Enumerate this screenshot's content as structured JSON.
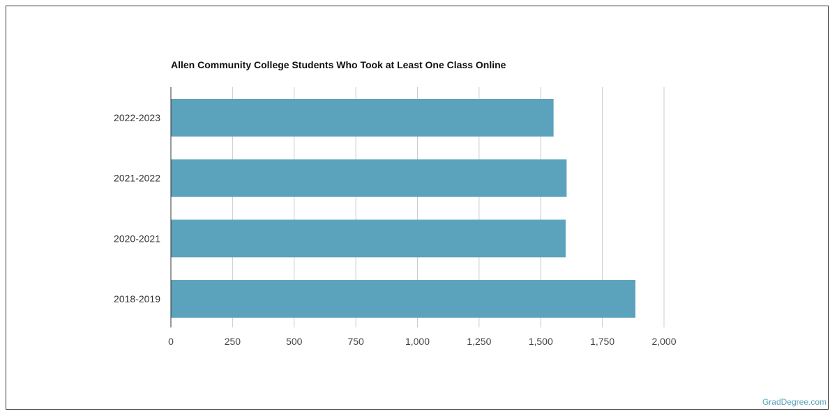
{
  "chart_data": {
    "type": "bar",
    "orientation": "horizontal",
    "title": "Allen Community College Students Who Took at Least One Class Online",
    "xlabel": "",
    "ylabel": "",
    "categories": [
      "2022-2023",
      "2021-2022",
      "2020-2021",
      "2018-2019"
    ],
    "values": [
      1552,
      1605,
      1601,
      1884
    ],
    "xlim": [
      0,
      2000
    ],
    "x_ticks": [
      0,
      250,
      500,
      750,
      1000,
      1250,
      1500,
      1750,
      2000
    ],
    "x_tick_labels": [
      "0",
      "250",
      "500",
      "750",
      "1,000",
      "1,250",
      "1,500",
      "1,750",
      "2,000"
    ],
    "grid": true,
    "legend": "none",
    "bar_color": "#5ba2bd"
  },
  "watermark": "GradDegree.com"
}
